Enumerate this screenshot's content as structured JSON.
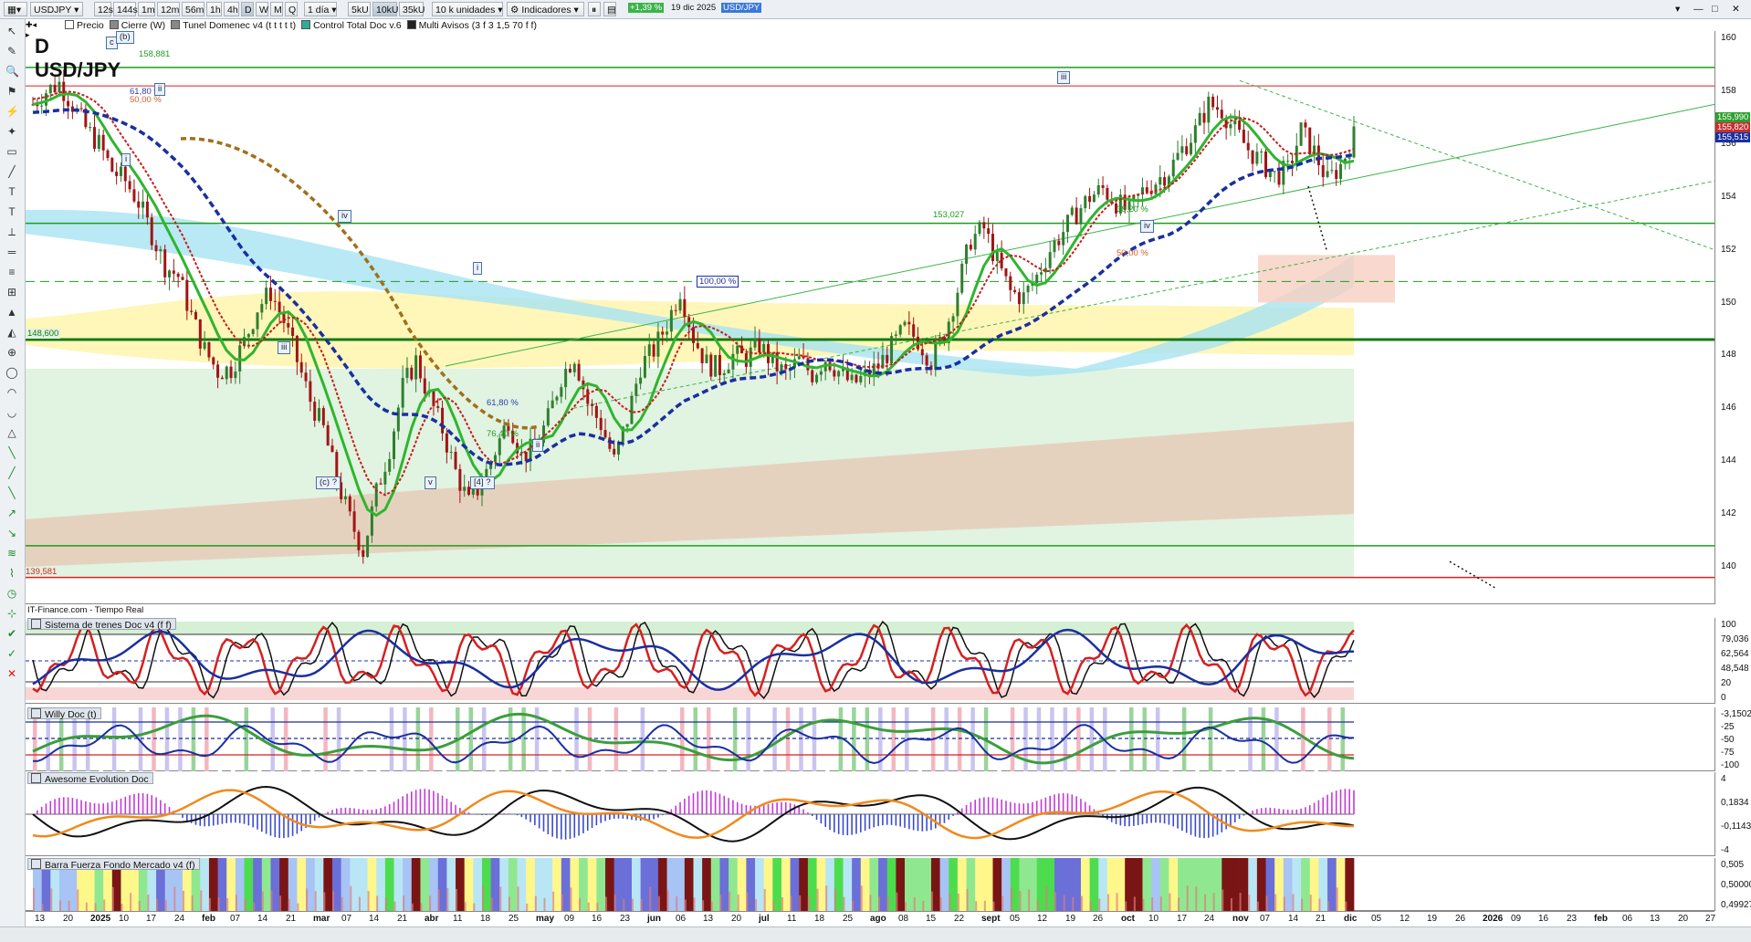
{
  "toolbar": {
    "symbol": "USDJPY",
    "timeframes": [
      "12s",
      "144s",
      "1m",
      "12m",
      "56m",
      "1h",
      "4h",
      "D",
      "W",
      "M",
      "Q"
    ],
    "period_select": "1 día",
    "lots": [
      "5kU",
      "10kU",
      "35kU"
    ],
    "units_select": "10 k unidades",
    "indicators_label": "Indicadores",
    "change_badge": "+1,39 %",
    "date": "19 dic 2025",
    "pair_badge": "USD/JPY",
    "chart_checks": [
      "Precio",
      "Cierre (W)",
      "Tunel Domenec v4 (t t t t t)",
      "Control Total Doc v.6",
      "Multi Avisos (3 f 3 1,5 70 f f)"
    ]
  },
  "main": {
    "timeframe_label": "D",
    "pair_label": "USD/JPY",
    "source_label": "IT-Finance.com - Tiempo Real",
    "price_ticks": [
      "160",
      "158",
      "156",
      "154",
      "152",
      "150",
      "148",
      "146",
      "144",
      "142",
      "140"
    ],
    "right_tags": [
      "155,990",
      "155,820",
      "155,515"
    ],
    "level_labels": [
      "158,881",
      "148,600",
      "139,581",
      "153,027"
    ],
    "fib_labels": [
      "61,80 %",
      "50,00 %",
      "100,00 %",
      "61,80 %",
      "76,40 %",
      "38,20 %",
      "50,00 %"
    ],
    "wave_labels": [
      "c",
      "(b)",
      "ii",
      "i",
      "iv",
      "iii",
      "i",
      "ii",
      "(c) ?",
      "v",
      "[4] ?",
      "iii",
      "iv"
    ]
  },
  "panes": [
    {
      "title": "Sistema de trenes Doc v4 (f f)",
      "ticks": [
        "100",
        "79,036",
        "62,564",
        "48,548",
        "20",
        "0"
      ]
    },
    {
      "title": "Willy Doc (t)",
      "ticks": [
        "-3,1502",
        "-25",
        "-50",
        "-75",
        "-100"
      ]
    },
    {
      "title": "Awesome Evolution Doc",
      "ticks": [
        "4",
        "0,1834",
        "-0,1143",
        "-4"
      ]
    },
    {
      "title": "Barra Fuerza Fondo Mercado v4 (f)",
      "ticks": [
        "0,505",
        "0,50000",
        "0,49927"
      ]
    }
  ],
  "x_axis": [
    "13",
    "20",
    "2025",
    "10",
    "17",
    "24",
    "feb",
    "07",
    "14",
    "21",
    "mar",
    "07",
    "14",
    "21",
    "abr",
    "11",
    "18",
    "25",
    "may",
    "09",
    "16",
    "23",
    "jun",
    "06",
    "13",
    "20",
    "jul",
    "11",
    "18",
    "25",
    "ago",
    "08",
    "15",
    "22",
    "sept",
    "05",
    "12",
    "19",
    "26",
    "oct",
    "10",
    "17",
    "24",
    "nov",
    "07",
    "14",
    "21",
    "dic",
    "05",
    "12",
    "19",
    "26",
    "2026",
    "09",
    "16",
    "23",
    "feb",
    "06",
    "13",
    "20",
    "27"
  ],
  "colors": {
    "green_line": "#1f9d1f",
    "red_line": "#d62020",
    "blue_dash": "#1a2fa0",
    "brown_dash": "#a0701a",
    "up_candle": "#2f7f2f",
    "down_candle": "#a01515"
  }
}
